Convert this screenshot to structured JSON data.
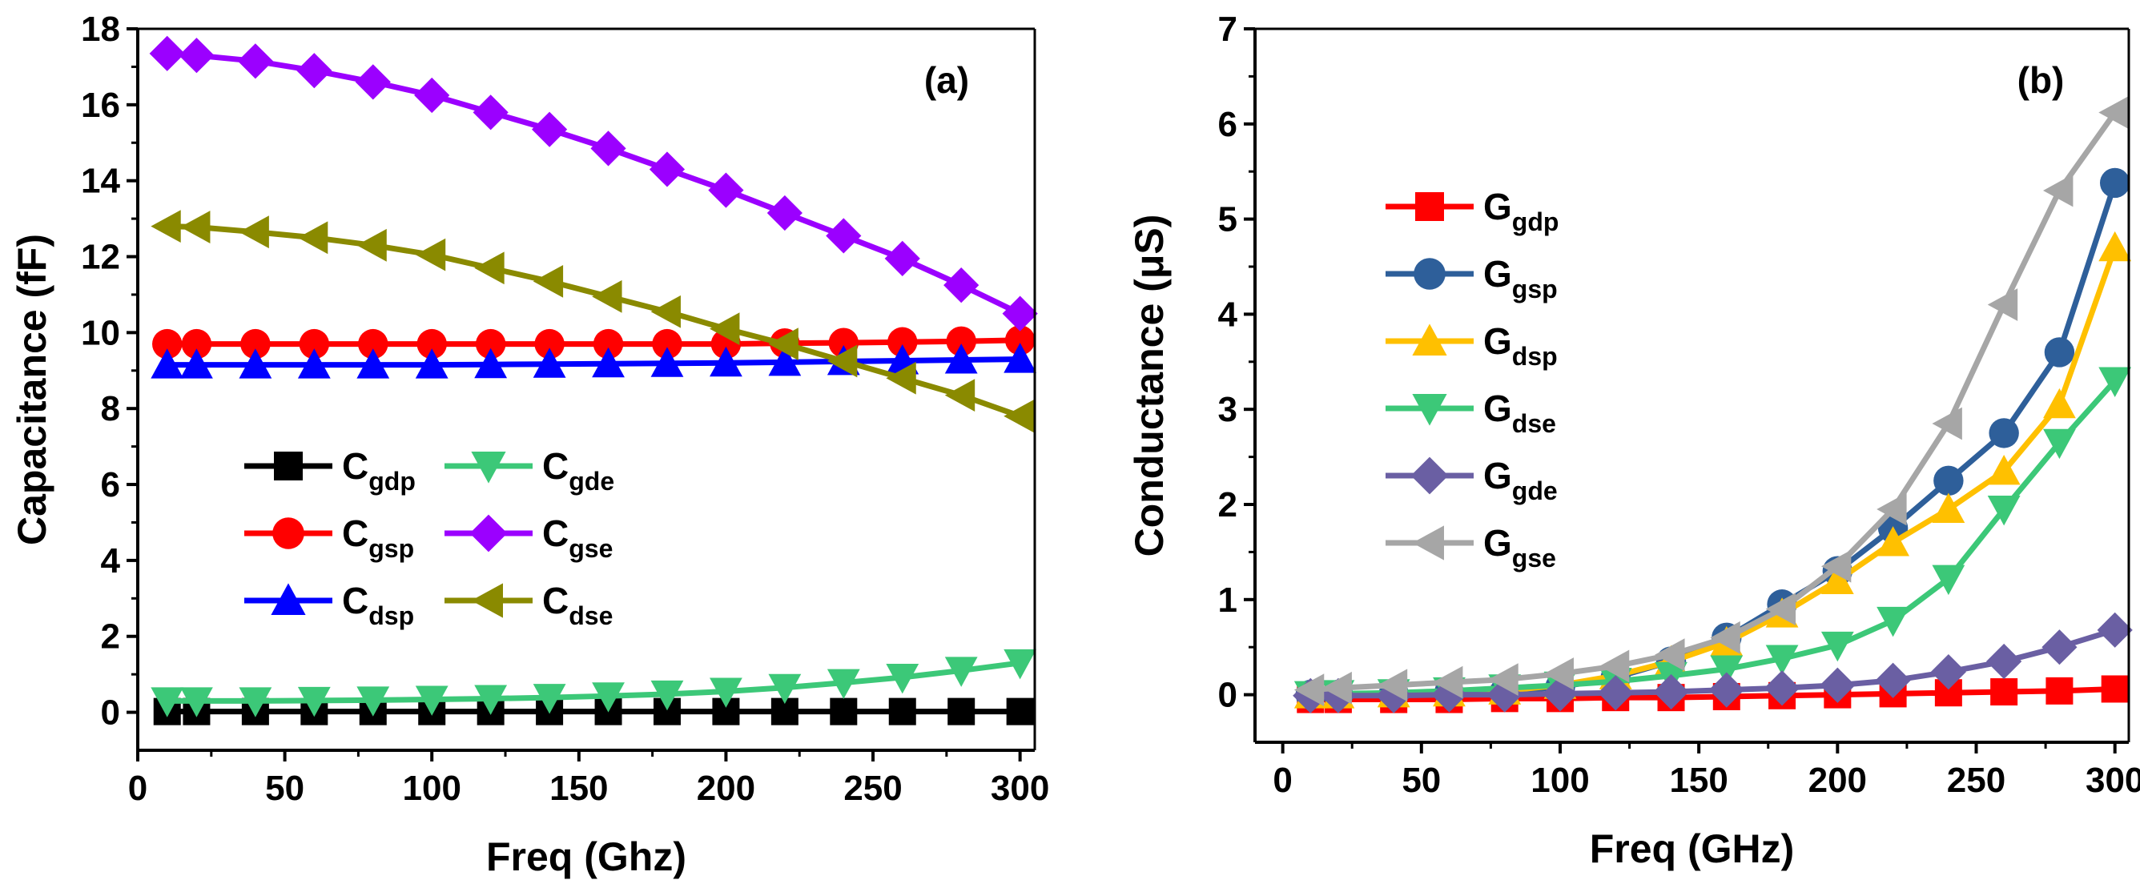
{
  "chart_data": [
    {
      "type": "line",
      "panel_label": "(a)",
      "xlabel": "Freq (Ghz)",
      "ylabel": "Capacitance (fF)",
      "xlim": [
        0,
        305
      ],
      "ylim": [
        -1,
        18
      ],
      "xticks": [
        0,
        50,
        100,
        150,
        200,
        250,
        300
      ],
      "yticks": [
        0,
        2,
        4,
        6,
        8,
        10,
        12,
        14,
        16,
        18
      ],
      "legend_placement": "lower-left",
      "legend_columns": 2,
      "grid": false,
      "x": [
        10,
        20,
        40,
        60,
        80,
        100,
        120,
        140,
        160,
        180,
        200,
        220,
        240,
        260,
        280,
        300
      ],
      "series": [
        {
          "name_main": "C",
          "name_sub": "gdp",
          "color": "#000000",
          "marker": "square",
          "values": [
            0.02,
            0.02,
            0.02,
            0.02,
            0.02,
            0.02,
            0.02,
            0.02,
            0.02,
            0.02,
            0.02,
            0.02,
            0.02,
            0.02,
            0.02,
            0.02
          ]
        },
        {
          "name_main": "C",
          "name_sub": "gsp",
          "color": "#ff0000",
          "marker": "circle",
          "values": [
            9.7,
            9.7,
            9.7,
            9.7,
            9.7,
            9.7,
            9.7,
            9.7,
            9.7,
            9.7,
            9.7,
            9.72,
            9.73,
            9.75,
            9.77,
            9.8
          ]
        },
        {
          "name_main": "C",
          "name_sub": "dsp",
          "color": "#0000ff",
          "marker": "triangle-up",
          "values": [
            9.15,
            9.15,
            9.15,
            9.15,
            9.15,
            9.15,
            9.16,
            9.17,
            9.18,
            9.19,
            9.2,
            9.22,
            9.24,
            9.26,
            9.28,
            9.3
          ]
        },
        {
          "name_main": "C",
          "name_sub": "gde",
          "color": "#3cc878",
          "marker": "triangle-down",
          "values": [
            0.3,
            0.3,
            0.3,
            0.31,
            0.32,
            0.34,
            0.36,
            0.39,
            0.43,
            0.48,
            0.55,
            0.65,
            0.78,
            0.92,
            1.1,
            1.3
          ]
        },
        {
          "name_main": "C",
          "name_sub": "gse",
          "color": "#9b00ff",
          "marker": "diamond",
          "values": [
            17.35,
            17.3,
            17.15,
            16.9,
            16.6,
            16.25,
            15.8,
            15.35,
            14.85,
            14.3,
            13.75,
            13.15,
            12.55,
            11.95,
            11.25,
            10.5
          ]
        },
        {
          "name_main": "C",
          "name_sub": "dse",
          "color": "#8a8a00",
          "marker": "triangle-left",
          "values": [
            12.8,
            12.78,
            12.65,
            12.5,
            12.3,
            12.05,
            11.7,
            11.35,
            10.95,
            10.55,
            10.1,
            9.7,
            9.25,
            8.8,
            8.35,
            7.8
          ]
        }
      ]
    },
    {
      "type": "line",
      "panel_label": "(b)",
      "xlabel": "Freq (GHz)",
      "ylabel": "Conductance (μS)",
      "xlim": [
        -10,
        305
      ],
      "ylim": [
        -0.5,
        7
      ],
      "xticks": [
        0,
        50,
        100,
        150,
        200,
        250,
        300
      ],
      "yticks": [
        0,
        1,
        2,
        3,
        4,
        5,
        6,
        7
      ],
      "legend_placement": "upper-left",
      "legend_columns": 1,
      "grid": false,
      "x": [
        10,
        20,
        40,
        60,
        80,
        100,
        120,
        140,
        160,
        180,
        200,
        220,
        240,
        260,
        280,
        300
      ],
      "series": [
        {
          "name_main": "G",
          "name_sub": "gdp",
          "color": "#ff0000",
          "marker": "square",
          "values": [
            -0.05,
            -0.05,
            -0.05,
            -0.05,
            -0.04,
            -0.04,
            -0.03,
            -0.03,
            -0.02,
            -0.01,
            0.0,
            0.01,
            0.02,
            0.03,
            0.04,
            0.06
          ]
        },
        {
          "name_main": "G",
          "name_sub": "gsp",
          "color": "#2e5f9a",
          "marker": "circle",
          "values": [
            0.0,
            0.0,
            0.01,
            0.02,
            0.03,
            0.08,
            0.18,
            0.35,
            0.6,
            0.95,
            1.3,
            1.75,
            2.25,
            2.75,
            3.6,
            5.38
          ]
        },
        {
          "name_main": "G",
          "name_sub": "dsp",
          "color": "#ffc000",
          "marker": "triangle-up",
          "values": [
            0.0,
            0.0,
            0.01,
            0.02,
            0.04,
            0.1,
            0.2,
            0.35,
            0.55,
            0.85,
            1.2,
            1.6,
            1.95,
            2.35,
            3.05,
            4.7
          ]
        },
        {
          "name_main": "G",
          "name_sub": "dse",
          "color": "#3cc878",
          "marker": "triangle-down",
          "values": [
            0.0,
            0.01,
            0.02,
            0.04,
            0.07,
            0.1,
            0.14,
            0.2,
            0.27,
            0.38,
            0.52,
            0.78,
            1.22,
            1.95,
            2.65,
            3.3
          ]
        },
        {
          "name_main": "G",
          "name_sub": "gde",
          "color": "#6a5fa3",
          "marker": "diamond",
          "values": [
            -0.01,
            -0.01,
            -0.01,
            0.0,
            0.0,
            0.01,
            0.02,
            0.03,
            0.05,
            0.07,
            0.1,
            0.15,
            0.24,
            0.35,
            0.5,
            0.68
          ]
        },
        {
          "name_main": "G",
          "name_sub": "gse",
          "color": "#a6a6a6",
          "marker": "triangle-left",
          "values": [
            0.05,
            0.07,
            0.1,
            0.13,
            0.16,
            0.22,
            0.3,
            0.42,
            0.6,
            0.9,
            1.35,
            1.95,
            2.85,
            4.1,
            5.3,
            6.12
          ]
        }
      ]
    }
  ]
}
